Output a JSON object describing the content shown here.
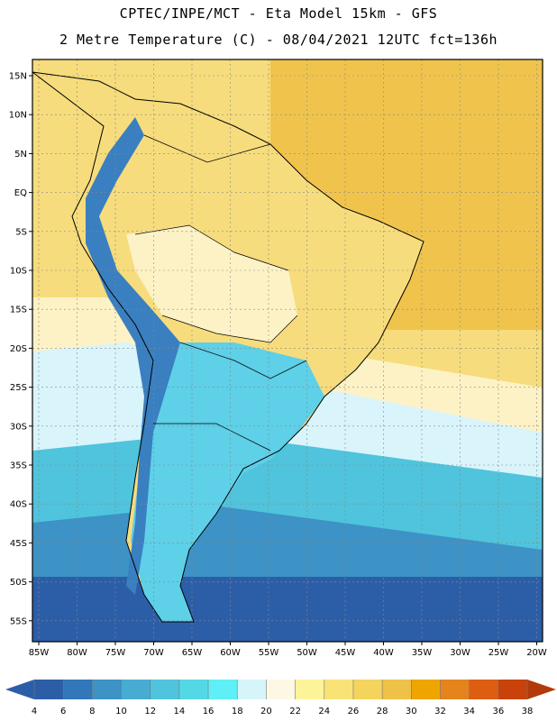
{
  "header": {
    "line1": "CPTEC/INPE/MCT -  Eta Model 15km - GFS",
    "line2": "2 Metre Temperature (C) - 08/04/2021 12UTC fct=136h"
  },
  "axes": {
    "lat_labels": [
      "15N",
      "10N",
      "5N",
      "EQ",
      "5S",
      "10S",
      "15S",
      "20S",
      "25S",
      "30S",
      "35S",
      "40S",
      "45S",
      "50S",
      "55S"
    ],
    "lon_labels": [
      "85W",
      "80W",
      "75W",
      "70W",
      "65W",
      "60W",
      "55W",
      "50W",
      "45W",
      "40W",
      "35W",
      "30W",
      "25W",
      "20W"
    ]
  },
  "legend": {
    "ticks": [
      "4",
      "6",
      "8",
      "10",
      "12",
      "14",
      "16",
      "18",
      "20",
      "22",
      "24",
      "26",
      "28",
      "30",
      "32",
      "34",
      "36",
      "38"
    ],
    "colors": [
      "#2c5ea8",
      "#3177b9",
      "#3d92c6",
      "#48acd2",
      "#4fc4dc",
      "#55d8e6",
      "#5ef0f6",
      "#d5f5fb",
      "#fcf8e4",
      "#fdf49a",
      "#f9e376",
      "#f4d45c",
      "#eec149",
      "#eea500",
      "#e5831d",
      "#dd5e11",
      "#c8420a"
    ],
    "left_arrow_color": "#2c5ea8",
    "right_arrow_color": "#b33a0a"
  },
  "map_colors": {
    "ocean_warm": "#f6dc7c",
    "ocean_hot": "#f0c44c",
    "ocean_mild": "#fdf2c6",
    "ocean_cool": "#d9f4fb",
    "ocean_cold1": "#4fc4dc",
    "ocean_cold2": "#3d92c6",
    "ocean_cold3": "#2c5ea8",
    "land_hot": "#f6dc7c",
    "land_warm": "#fdf2c6",
    "andes": "#3a7fc0",
    "south_land": "#5ed0e8"
  }
}
